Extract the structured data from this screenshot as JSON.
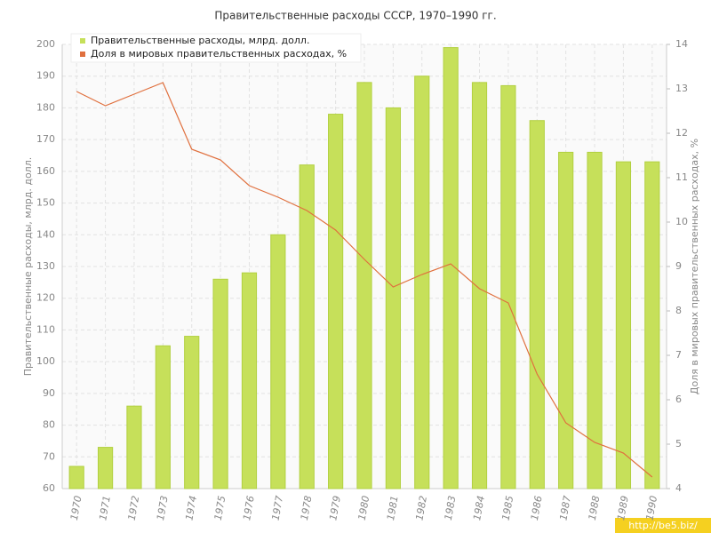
{
  "chart_data": {
    "type": "bar",
    "title": "Правительственные расходы СССР, 1970–1990 гг.",
    "y_label": "Правительственные расходы, млрд. долл.",
    "y2_label": "Доля в мировых правительственных расходах, %",
    "watermark": "http://be5.biz/",
    "categories": [
      "1970",
      "1971",
      "1972",
      "1973",
      "1974",
      "1975",
      "1976",
      "1977",
      "1978",
      "1979",
      "1980",
      "1981",
      "1982",
      "1983",
      "1984",
      "1985",
      "1986",
      "1987",
      "1988",
      "1989",
      "1990"
    ],
    "series": [
      {
        "name": "Правительственные расходы, млрд. долл.",
        "type": "bar",
        "color": "#c6e05a",
        "values": [
          67,
          73,
          86,
          105,
          108,
          126,
          128,
          140,
          162,
          178,
          188,
          180,
          190,
          199,
          188,
          187,
          176,
          166,
          166,
          163,
          163
        ]
      },
      {
        "name": "Доля в мировых правительственных расходах, %",
        "type": "line",
        "axis": "y2",
        "color": "#e0703e",
        "values": [
          12.94,
          12.62,
          12.88,
          13.14,
          11.64,
          11.4,
          10.82,
          10.56,
          10.26,
          9.82,
          9.16,
          8.54,
          8.82,
          9.06,
          8.5,
          8.18,
          6.58,
          5.48,
          5.04,
          4.8,
          4.26
        ]
      }
    ],
    "ylim": [
      60,
      200
    ],
    "yticks": [
      60,
      70,
      80,
      90,
      100,
      110,
      120,
      130,
      140,
      150,
      160,
      170,
      180,
      190,
      200
    ],
    "y2lim": [
      4,
      14
    ],
    "y2ticks": [
      4,
      5,
      6,
      7,
      8,
      9,
      10,
      11,
      12,
      13,
      14
    ],
    "grid": true
  }
}
